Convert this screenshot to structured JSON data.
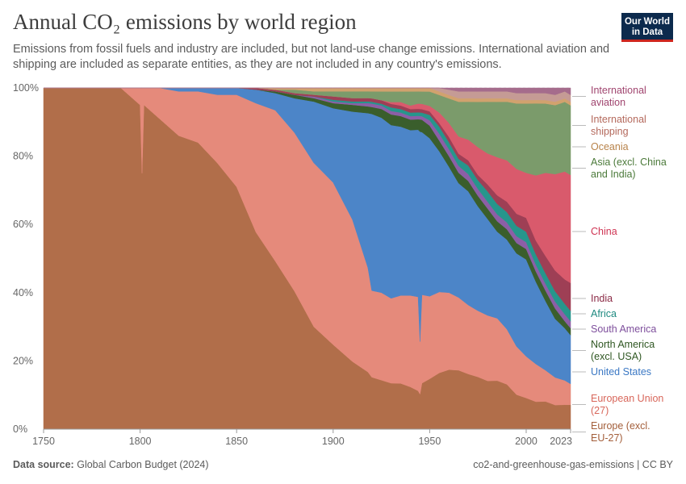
{
  "header": {
    "title": "Annual CO₂ emissions by world region",
    "subtitle": "Emissions from fossil fuels and industry are included, but not land-use change emissions. International aviation and shipping are included as separate entities, as they are not included in any country's emissions."
  },
  "logo": {
    "line1": "Our World",
    "line2": "in Data"
  },
  "footer": {
    "source_label": "Data source:",
    "source_value": "Global Carbon Budget (2024)",
    "right": "co2-and-greenhouse-gas-emissions | CC BY"
  },
  "chart_data": {
    "type": "area",
    "stacked": true,
    "relative": true,
    "x": [
      1750,
      1790,
      1800,
      1801,
      1802,
      1810,
      1820,
      1830,
      1840,
      1850,
      1860,
      1870,
      1880,
      1890,
      1900,
      1910,
      1918,
      1920,
      1925,
      1930,
      1935,
      1940,
      1944,
      1945,
      1946,
      1950,
      1955,
      1960,
      1965,
      1970,
      1975,
      1980,
      1985,
      1990,
      1995,
      2000,
      2005,
      2010,
      2015,
      2020,
      2023
    ],
    "x_ticks": [
      "1750",
      "1800",
      "1850",
      "1900",
      "1950",
      "2000",
      "2023"
    ],
    "y_ticks": [
      "0%",
      "20%",
      "40%",
      "60%",
      "80%",
      "100%"
    ],
    "ylim": [
      0,
      100
    ],
    "series": [
      {
        "name": "Europe (excl. EU-27)",
        "color": "#b16e4a",
        "values": [
          100,
          100,
          95,
          75,
          95,
          91,
          86,
          84,
          78,
          71,
          58,
          49,
          40,
          30,
          25,
          20,
          17,
          15,
          14,
          13,
          13,
          12,
          11,
          10,
          13,
          14,
          16,
          17,
          17,
          16,
          15,
          14,
          14,
          13,
          10,
          9,
          8,
          8,
          7,
          7,
          7
        ]
      },
      {
        "name": "European Union (27)",
        "color": "#e58a7b",
        "values": [
          0,
          0,
          5,
          25,
          5,
          9,
          13,
          15,
          20,
          27,
          38,
          44,
          46,
          48,
          48,
          42,
          31,
          25,
          25,
          24,
          25,
          26,
          27,
          15,
          25,
          23,
          23,
          22,
          21,
          20,
          19,
          19,
          18,
          16,
          14,
          12,
          11,
          9,
          8,
          7,
          6
        ]
      },
      {
        "name": "United States",
        "color": "#4c85c8",
        "values": [
          0,
          0,
          0,
          0,
          0,
          0,
          1,
          1,
          2,
          2,
          4,
          5,
          10,
          18,
          22,
          32,
          46,
          51,
          50,
          49,
          48,
          47,
          48,
          60,
          46,
          44,
          40,
          36,
          33,
          33,
          30,
          28,
          25,
          26,
          27,
          28,
          24,
          20,
          17,
          15,
          14
        ]
      },
      {
        "name": "North America (excl. USA)",
        "color": "#3a5e2c",
        "values": [
          0,
          0,
          0,
          0,
          0,
          0,
          0,
          0,
          0,
          0,
          0,
          0.5,
          1,
          1,
          1.5,
          2,
          2,
          2,
          2.5,
          3,
          3,
          3,
          3,
          3.5,
          3.5,
          3.5,
          3,
          3,
          3,
          3,
          3,
          3,
          3,
          3,
          3,
          3,
          3,
          3,
          3,
          2,
          2
        ]
      },
      {
        "name": "South America",
        "color": "#8c5fa6",
        "values": [
          0,
          0,
          0,
          0,
          0,
          0,
          0,
          0,
          0,
          0,
          0,
          0,
          0,
          0.5,
          0.5,
          0.5,
          1,
          1,
          1,
          1,
          1,
          1,
          1,
          1,
          1,
          1.5,
          2,
          2,
          2,
          2,
          2,
          2,
          2,
          2,
          2,
          2,
          2,
          2,
          2,
          2,
          2
        ]
      },
      {
        "name": "Africa",
        "color": "#26968c",
        "values": [
          0,
          0,
          0,
          0,
          0,
          0,
          0,
          0,
          0,
          0,
          0,
          0,
          0,
          0,
          0.5,
          0.5,
          0.5,
          0.5,
          0.5,
          1,
          1,
          1,
          1,
          1,
          1,
          1.5,
          2,
          2,
          2,
          2.5,
          2.5,
          3,
          3,
          3,
          3,
          3,
          3,
          3,
          3,
          3,
          3
        ]
      },
      {
        "name": "India",
        "color": "#9e3f55",
        "values": [
          0,
          0,
          0,
          0,
          0,
          0,
          0,
          0,
          0,
          0,
          0.5,
          0.5,
          0.5,
          0.5,
          1,
          1,
          1,
          1,
          1,
          1,
          1,
          1,
          1,
          1,
          1,
          1,
          1,
          1.5,
          1.5,
          1.5,
          1.5,
          2,
          2.5,
          3,
          3.5,
          4,
          4,
          5,
          6,
          7,
          8
        ]
      },
      {
        "name": "China",
        "color": "#d95a6c",
        "values": [
          0,
          0,
          0,
          0,
          0,
          0,
          0,
          0,
          0,
          0,
          0,
          0,
          0,
          0,
          0,
          0,
          0,
          0,
          0,
          0.5,
          1,
          1,
          1.5,
          1.5,
          1.5,
          1.5,
          3,
          4,
          5,
          6,
          8,
          9,
          11,
          12,
          13,
          13,
          19,
          24,
          28,
          31,
          31
        ]
      },
      {
        "name": "Asia (excl. China and India)",
        "color": "#7b9b6b",
        "values": [
          0,
          0,
          0,
          0,
          0,
          0,
          0,
          0,
          0,
          0,
          0,
          0,
          1,
          1,
          1.5,
          2,
          2,
          2,
          2.5,
          3,
          3,
          4,
          3.5,
          3.5,
          3.5,
          4,
          5,
          7,
          10,
          11,
          13,
          15,
          16,
          17,
          19,
          20,
          21,
          20,
          20,
          20,
          20
        ]
      },
      {
        "name": "Oceania",
        "color": "#d1a26e",
        "values": [
          0,
          0,
          0,
          0,
          0,
          0,
          0,
          0,
          0,
          0,
          0,
          0.5,
          0.5,
          1,
          1,
          1,
          1,
          1,
          1,
          1,
          1,
          1,
          1,
          1,
          1,
          1,
          1,
          1,
          1,
          1,
          1,
          1,
          1,
          1,
          1,
          1,
          1,
          1,
          1,
          1,
          1
        ]
      },
      {
        "name": "International shipping",
        "color": "#c59b95",
        "values": [
          0,
          0,
          0,
          0,
          0,
          0,
          0,
          0,
          0,
          0,
          0,
          0,
          0,
          0,
          0,
          0,
          0,
          0,
          0,
          0,
          0,
          0,
          0,
          0,
          0,
          0,
          1,
          1.5,
          2,
          2,
          2,
          2,
          2,
          2,
          2,
          2,
          2,
          2,
          2,
          2,
          2
        ]
      },
      {
        "name": "International aviation",
        "color": "#a56c8c",
        "values": [
          0,
          0,
          0,
          0,
          0,
          0,
          0,
          0,
          0,
          0,
          0,
          0,
          0,
          0,
          0,
          0,
          0,
          0,
          0,
          0,
          0,
          0,
          0,
          0,
          0,
          0,
          0,
          0.5,
          1,
          1,
          1,
          1,
          1,
          1,
          1.5,
          1.5,
          1.5,
          1.5,
          2,
          1,
          2
        ]
      }
    ],
    "legend": [
      {
        "lines": [
          "International",
          "aviation"
        ],
        "color": "#a0456f"
      },
      {
        "lines": [
          "International",
          "shipping"
        ],
        "color": "#b4695c"
      },
      {
        "lines": [
          "Oceania"
        ],
        "color": "#b8834a"
      },
      {
        "lines": [
          "Asia (excl. China",
          "and India)"
        ],
        "color": "#4b7a3a"
      },
      {
        "lines": [
          "China"
        ],
        "color": "#cf3453"
      },
      {
        "lines": [
          "India"
        ],
        "color": "#8b2b46"
      },
      {
        "lines": [
          "Africa"
        ],
        "color": "#1e8a80"
      },
      {
        "lines": [
          "South America"
        ],
        "color": "#7e4f9c"
      },
      {
        "lines": [
          "North America",
          "(excl. USA)"
        ],
        "color": "#2f5722"
      },
      {
        "lines": [
          "United States"
        ],
        "color": "#3b78c4"
      },
      {
        "lines": [
          "European Union",
          "(27)"
        ],
        "color": "#d8665a"
      },
      {
        "lines": [
          "Europe (excl.",
          "EU-27)"
        ],
        "color": "#a35e3a"
      }
    ],
    "legend_placement": "right",
    "grid": true
  }
}
